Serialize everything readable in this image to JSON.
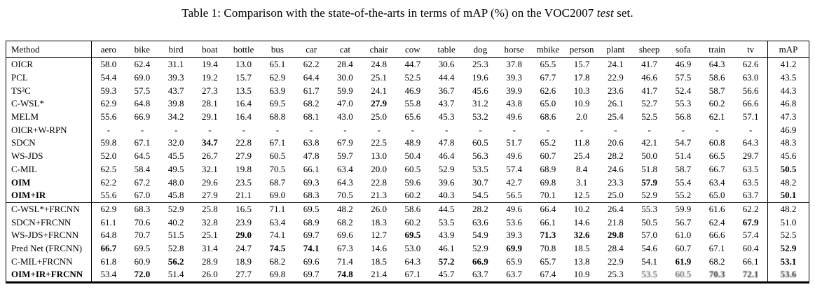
{
  "caption": {
    "text_before_italic": "Table 1: Comparison with the state-of-the-arts in terms of mAP (%) on the VOC2007",
    "italic_word": "test",
    "text_after_italic": "set."
  },
  "table": {
    "columns": [
      "Method",
      "aero",
      "bike",
      "bird",
      "boat",
      "bottle",
      "bus",
      "car",
      "cat",
      "chair",
      "cow",
      "table",
      "dog",
      "horse",
      "mbike",
      "person",
      "plant",
      "sheep",
      "sofa",
      "train",
      "tv",
      "mAP"
    ],
    "rows": [
      {
        "method": "OICR",
        "method_bold": false,
        "values": [
          "58.0",
          "62.4",
          "31.1",
          "19.4",
          "13.0",
          "65.1",
          "62.2",
          "28.4",
          "24.8",
          "44.7",
          "30.6",
          "25.3",
          "37.8",
          "65.5",
          "15.7",
          "24.1",
          "41.7",
          "46.9",
          "64.3",
          "62.6"
        ],
        "bold": [],
        "map": "41.2",
        "map_bold": false
      },
      {
        "method": "PCL",
        "method_bold": false,
        "values": [
          "54.4",
          "69.0",
          "39.3",
          "19.2",
          "15.7",
          "62.9",
          "64.4",
          "30.0",
          "25.1",
          "52.5",
          "44.4",
          "19.6",
          "39.3",
          "67.7",
          "17.8",
          "22.9",
          "46.6",
          "57.5",
          "58.6",
          "63.0"
        ],
        "bold": [],
        "map": "43.5",
        "map_bold": false
      },
      {
        "method": "TS²C",
        "method_bold": false,
        "values": [
          "59.3",
          "57.5",
          "43.7",
          "27.3",
          "13.5",
          "63.9",
          "61.7",
          "59.9",
          "24.1",
          "46.9",
          "36.7",
          "45.6",
          "39.9",
          "62.6",
          "10.3",
          "23.6",
          "41.7",
          "52.4",
          "58.7",
          "56.6"
        ],
        "bold": [],
        "map": "44.3",
        "map_bold": false
      },
      {
        "method": "C-WSL*",
        "method_bold": false,
        "values": [
          "62.9",
          "64.8",
          "39.8",
          "28.1",
          "16.4",
          "69.5",
          "68.2",
          "47.0",
          "27.9",
          "55.8",
          "43.7",
          "31.2",
          "43.8",
          "65.0",
          "10.9",
          "26.1",
          "52.7",
          "55.3",
          "60.2",
          "66.6"
        ],
        "bold": [
          8
        ],
        "map": "46.8",
        "map_bold": false
      },
      {
        "method": "MELM",
        "method_bold": false,
        "values": [
          "55.6",
          "66.9",
          "34.2",
          "29.1",
          "16.4",
          "68.8",
          "68.1",
          "43.0",
          "25.0",
          "65.6",
          "45.3",
          "53.2",
          "49.6",
          "68.6",
          "2.0",
          "25.4",
          "52.5",
          "56.8",
          "62.1",
          "57.1"
        ],
        "bold": [],
        "map": "47.3",
        "map_bold": false
      },
      {
        "method": "OICR+W-RPN",
        "method_bold": false,
        "values": [
          "-",
          "-",
          "-",
          "-",
          "-",
          "-",
          "-",
          "-",
          "-",
          "-",
          "-",
          "-",
          "-",
          "-",
          "-",
          "-",
          "-",
          "-",
          "-",
          "-"
        ],
        "bold": [],
        "map": "46.9",
        "map_bold": false
      },
      {
        "method": "SDCN",
        "method_bold": false,
        "values": [
          "59.8",
          "67.1",
          "32.0",
          "34.7",
          "22.8",
          "67.1",
          "63.8",
          "67.9",
          "22.5",
          "48.9",
          "47.8",
          "60.5",
          "51.7",
          "65.2",
          "11.8",
          "20.6",
          "42.1",
          "54.7",
          "60.8",
          "64.3"
        ],
        "bold": [
          3
        ],
        "map": "48.3",
        "map_bold": false
      },
      {
        "method": "WS-JDS",
        "method_bold": false,
        "values": [
          "52.0",
          "64.5",
          "45.5",
          "26.7",
          "27.9",
          "60.5",
          "47.8",
          "59.7",
          "13.0",
          "50.4",
          "46.4",
          "56.3",
          "49.6",
          "60.7",
          "25.4",
          "28.2",
          "50.0",
          "51.4",
          "66.5",
          "29.7"
        ],
        "bold": [],
        "map": "45.6",
        "map_bold": false
      },
      {
        "method": "C-MIL",
        "method_bold": false,
        "values": [
          "62.5",
          "58.4",
          "49.5",
          "32.1",
          "19.8",
          "70.5",
          "66.1",
          "63.4",
          "20.0",
          "60.5",
          "52.9",
          "53.5",
          "57.4",
          "68.9",
          "8.4",
          "24.6",
          "51.8",
          "58.7",
          "66.7",
          "63.5"
        ],
        "bold": [],
        "map": "50.5",
        "map_bold": true
      },
      {
        "method": "OIM",
        "method_bold": true,
        "values": [
          "62.2",
          "67.2",
          "48.0",
          "29.6",
          "23.5",
          "68.7",
          "69.3",
          "64.3",
          "22.8",
          "59.6",
          "39.6",
          "30.7",
          "42.7",
          "69.8",
          "3.1",
          "23.3",
          "57.9",
          "55.4",
          "63.4",
          "63.5"
        ],
        "bold": [
          16
        ],
        "map": "48.2",
        "map_bold": false
      },
      {
        "method": "OIM+IR",
        "method_bold": true,
        "divider_below": true,
        "values": [
          "55.6",
          "67.0",
          "45.8",
          "27.9",
          "21.1",
          "69.0",
          "68.3",
          "70.5",
          "21.3",
          "60.2",
          "40.3",
          "54.5",
          "56.5",
          "70.1",
          "12.5",
          "25.0",
          "52.9",
          "55.2",
          "65.0",
          "63.7"
        ],
        "bold": [],
        "map": "50.1",
        "map_bold": true
      },
      {
        "method": "C-WSL*+FRCNN",
        "method_bold": false,
        "values": [
          "62.9",
          "68.3",
          "52.9",
          "25.8",
          "16.5",
          "71.1",
          "69.5",
          "48.2",
          "26.0",
          "58.6",
          "44.5",
          "28.2",
          "49.6",
          "66.4",
          "10.2",
          "26.4",
          "55.3",
          "59.9",
          "61.6",
          "62.2"
        ],
        "bold": [],
        "map": "48.2",
        "map_bold": false
      },
      {
        "method": "SDCN+FRCNN",
        "method_bold": false,
        "values": [
          "61.1",
          "70.6",
          "40.2",
          "32.8",
          "23.9",
          "63.4",
          "68.9",
          "68.2",
          "18.3",
          "60.2",
          "53.5",
          "63.6",
          "53.6",
          "66.1",
          "14.6",
          "21.8",
          "50.5",
          "56.7",
          "62.4",
          "67.9"
        ],
        "bold": [
          19
        ],
        "map": "51.0",
        "map_bold": false
      },
      {
        "method": "WS-JDS+FRCNN",
        "method_bold": false,
        "values": [
          "64.8",
          "70.7",
          "51.5",
          "25.1",
          "29.0",
          "74.1",
          "69.7",
          "69.6",
          "12.7",
          "69.5",
          "43.9",
          "54.9",
          "39.3",
          "71.3",
          "32.6",
          "29.8",
          "57.0",
          "61.0",
          "66.6",
          "57.4"
        ],
        "bold": [
          4,
          9,
          13,
          14,
          15
        ],
        "map": "52.5",
        "map_bold": false
      },
      {
        "method": "Pred Net (FRCNN)",
        "method_bold": false,
        "values": [
          "66.7",
          "69.5",
          "52.8",
          "31.4",
          "24.7",
          "74.5",
          "74.1",
          "67.3",
          "14.6",
          "53.0",
          "46.1",
          "52.9",
          "69.9",
          "70.8",
          "18.5",
          "28.4",
          "54.6",
          "60.7",
          "67.1",
          "60.4"
        ],
        "bold": [
          0,
          5,
          6,
          12
        ],
        "map": "52.9",
        "map_bold": true
      },
      {
        "method": "C-MIL+FRCNN",
        "method_bold": false,
        "values": [
          "61.8",
          "60.9",
          "56.2",
          "28.9",
          "18.9",
          "68.2",
          "69.6",
          "71.4",
          "18.5",
          "64.3",
          "57.2",
          "66.9",
          "65.9",
          "65.7",
          "13.8",
          "22.9",
          "54.1",
          "61.9",
          "68.2",
          "66.1"
        ],
        "bold": [
          2,
          10,
          11,
          17
        ],
        "map": "53.1",
        "map_bold": true
      },
      {
        "method": "OIM+IR+FRCNN",
        "method_bold": true,
        "values": [
          "53.4",
          "72.0",
          "51.4",
          "26.0",
          "27.7",
          "69.8",
          "69.7",
          "74.8",
          "21.4",
          "67.1",
          "45.7",
          "63.7",
          "63.7",
          "67.4",
          "10.9",
          "25.3",
          "53.5",
          "60.5",
          "70.3",
          "72.1"
        ],
        "bold": [
          1,
          7,
          18,
          19
        ],
        "smudge": [
          16,
          17,
          18,
          19
        ],
        "map": "53.6",
        "map_bold": true,
        "map_smudge": true
      }
    ]
  }
}
